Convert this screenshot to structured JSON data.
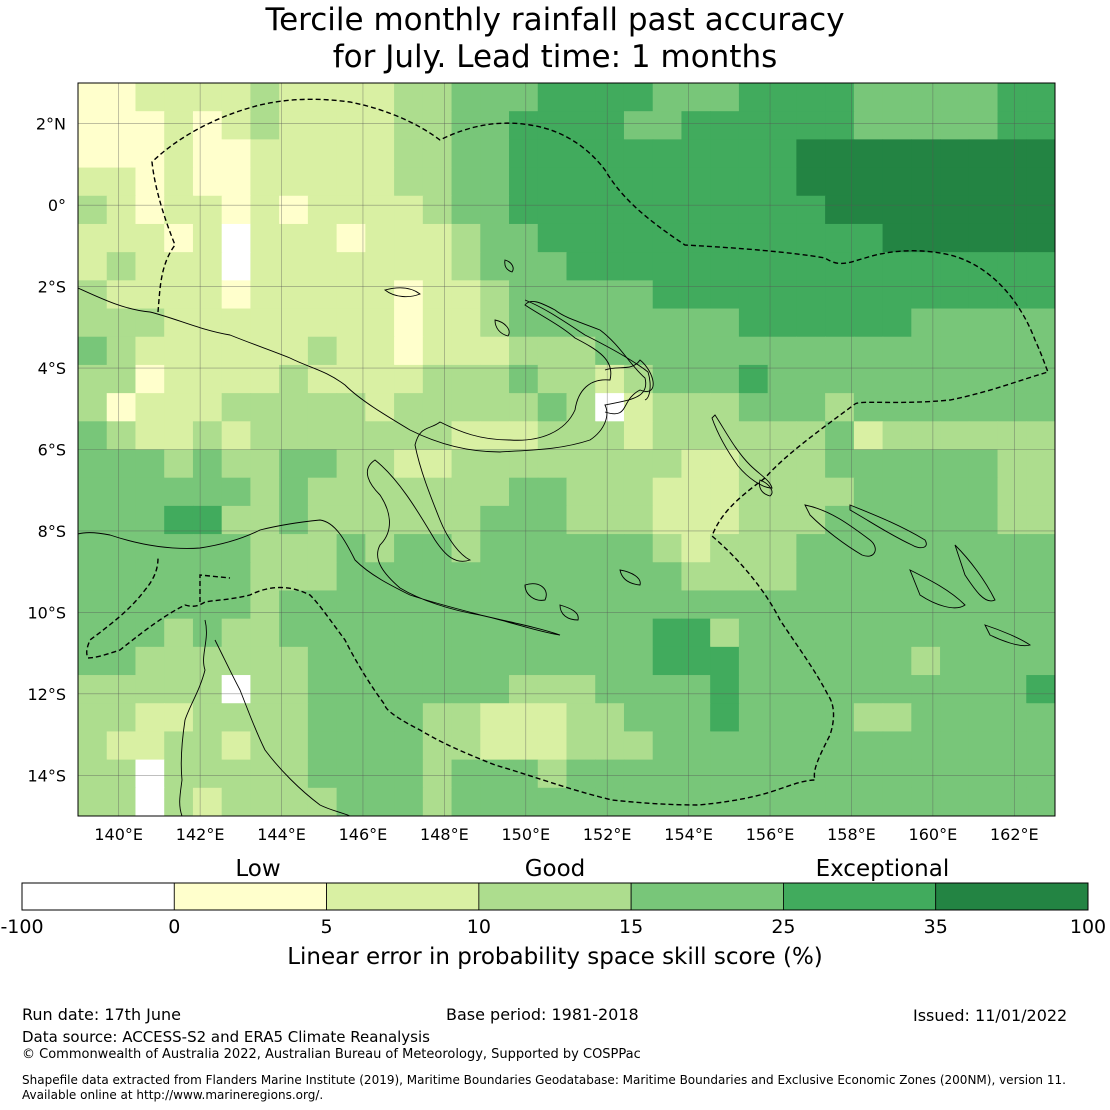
{
  "title": {
    "line1": "Tercile monthly rainfall past accuracy",
    "line2": "for July. Lead time: 1 months"
  },
  "map": {
    "lon_range": [
      139,
      163
    ],
    "lat_range": [
      -15,
      3
    ],
    "lon_ticks": [
      {
        "value": 140,
        "label": "140°E"
      },
      {
        "value": 142,
        "label": "142°E"
      },
      {
        "value": 144,
        "label": "144°E"
      },
      {
        "value": 146,
        "label": "146°E"
      },
      {
        "value": 148,
        "label": "148°E"
      },
      {
        "value": 150,
        "label": "150°E"
      },
      {
        "value": 152,
        "label": "152°E"
      },
      {
        "value": 154,
        "label": "154°E"
      },
      {
        "value": 156,
        "label": "156°E"
      },
      {
        "value": 158,
        "label": "158°E"
      },
      {
        "value": 160,
        "label": "160°E"
      },
      {
        "value": 162,
        "label": "162°E"
      }
    ],
    "lat_ticks": [
      {
        "value": 2,
        "label": "2°N"
      },
      {
        "value": 0,
        "label": "0°"
      },
      {
        "value": -2,
        "label": "2°S"
      },
      {
        "value": -4,
        "label": "4°S"
      },
      {
        "value": -6,
        "label": "6°S"
      },
      {
        "value": -8,
        "label": "8°S"
      },
      {
        "value": -10,
        "label": "10°S"
      },
      {
        "value": -12,
        "label": "12°S"
      },
      {
        "value": -14,
        "label": "14°S"
      }
    ],
    "grid": true
  },
  "colorbar": {
    "categories": [
      {
        "label": "Low"
      },
      {
        "label": "Good"
      },
      {
        "label": "Exceptional"
      }
    ],
    "bins": [
      {
        "from": -100,
        "to": 0,
        "color": "#ffffff"
      },
      {
        "from": 0,
        "to": 5,
        "color": "#ffffcc"
      },
      {
        "from": 5,
        "to": 10,
        "color": "#d9f0a3"
      },
      {
        "from": 10,
        "to": 15,
        "color": "#addd8e"
      },
      {
        "from": 15,
        "to": 25,
        "color": "#78c679"
      },
      {
        "from": 25,
        "to": 35,
        "color": "#41ab5d"
      },
      {
        "from": 35,
        "to": 100,
        "color": "#238443"
      }
    ],
    "ticks": [
      "-100",
      "0",
      "5",
      "10",
      "15",
      "25",
      "35",
      "100"
    ],
    "label": "Linear error in probability space skill score (%)"
  },
  "footer": {
    "run_date": "Run date: 17th June",
    "base_period": "Base period: 1981-2018",
    "issued": "Issued: 11/01/2022",
    "data_source": "Data source: ACCESS-S2 and ERA5 Climate Reanalysis",
    "copyright": "© Commonwealth of Australia 2022, Australian Bureau of Meteorology, Supported by COSPPac",
    "shapefile_line1": "Shapefile data extracted from Flanders Marine Institute (2019), Maritime Boundaries Geodatabase: Maritime Boundaries and Exclusive Economic Zones (200NM), version 11.",
    "shapefile_line2": "Available online at http://www.marineregions.org/."
  }
}
